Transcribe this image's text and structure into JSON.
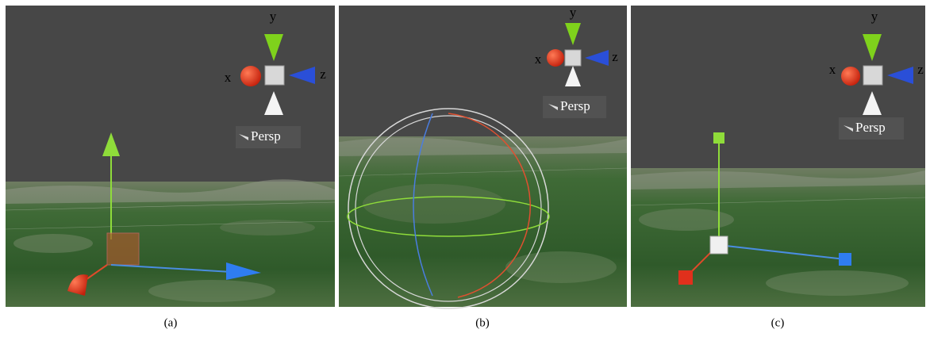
{
  "panels": [
    {
      "axes": {
        "x": "x",
        "y": "y",
        "z": "z"
      },
      "view_label": "Persp",
      "caption": "(a)"
    },
    {
      "axes": {
        "x": "x",
        "y": "y",
        "z": "z"
      },
      "view_label": "Persp",
      "caption": "(b)"
    },
    {
      "axes": {
        "x": "x",
        "y": "y",
        "z": "z"
      },
      "view_label": "Persp",
      "caption": "(c)"
    }
  ]
}
